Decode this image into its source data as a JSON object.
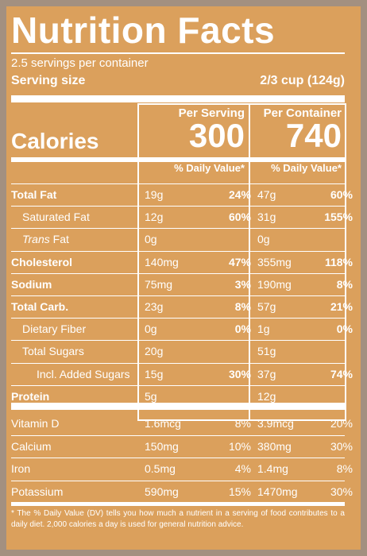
{
  "label": {
    "title": "Nutrition Facts",
    "servings_per_container": "2.5 servings per container",
    "serving_size_label": "Serving size",
    "serving_size_value": "2/3 cup (124g)",
    "per_serving_header": "Per Serving",
    "per_container_header": "Per Container",
    "calories_label": "Calories",
    "calories_per_serving": "300",
    "calories_per_container": "740",
    "dv_header": "% Daily Value*",
    "footnote": "* The % Daily Value (DV) tells you how much a nutrient in a serving of food contributes to a daily diet. 2,000 calories a day is used for general nutrition advice."
  },
  "nutrients": [
    {
      "name": "Total Fat",
      "bold": true,
      "indent": 0,
      "italic_prefix": "",
      "serv_amt": "19g",
      "serv_pct": "24%",
      "cont_amt": "47g",
      "cont_pct": "60%"
    },
    {
      "name": "Saturated Fat",
      "bold": false,
      "indent": 1,
      "italic_prefix": "",
      "serv_amt": "12g",
      "serv_pct": "60%",
      "cont_amt": "31g",
      "cont_pct": "155%"
    },
    {
      "name": "Fat",
      "bold": false,
      "indent": 1,
      "italic_prefix": "Trans",
      "serv_amt": "0g",
      "serv_pct": "",
      "cont_amt": "0g",
      "cont_pct": ""
    },
    {
      "name": "Cholesterol",
      "bold": true,
      "indent": 0,
      "italic_prefix": "",
      "serv_amt": "140mg",
      "serv_pct": "47%",
      "cont_amt": "355mg",
      "cont_pct": "118%"
    },
    {
      "name": "Sodium",
      "bold": true,
      "indent": 0,
      "italic_prefix": "",
      "serv_amt": "75mg",
      "serv_pct": "3%",
      "cont_amt": "190mg",
      "cont_pct": "8%"
    },
    {
      "name": "Total Carb.",
      "bold": true,
      "indent": 0,
      "italic_prefix": "",
      "serv_amt": "23g",
      "serv_pct": "8%",
      "cont_amt": "57g",
      "cont_pct": "21%"
    },
    {
      "name": "Dietary Fiber",
      "bold": false,
      "indent": 1,
      "italic_prefix": "",
      "serv_amt": "0g",
      "serv_pct": "0%",
      "cont_amt": "1g",
      "cont_pct": "0%"
    },
    {
      "name": "Total Sugars",
      "bold": false,
      "indent": 1,
      "italic_prefix": "",
      "serv_amt": "20g",
      "serv_pct": "",
      "cont_amt": "51g",
      "cont_pct": ""
    },
    {
      "name": "Incl. Added Sugars",
      "bold": false,
      "indent": 2,
      "italic_prefix": "",
      "serv_amt": "15g",
      "serv_pct": "30%",
      "cont_amt": "37g",
      "cont_pct": "74%"
    },
    {
      "name": "Protein",
      "bold": true,
      "indent": 0,
      "italic_prefix": "",
      "serv_amt": "5g",
      "serv_pct": "",
      "cont_amt": "12g",
      "cont_pct": ""
    }
  ],
  "vitamins": [
    {
      "name": "Vitamin D",
      "serv_amt": "1.6mcg",
      "serv_pct": "8%",
      "cont_amt": "3.9mcg",
      "cont_pct": "20%"
    },
    {
      "name": "Calcium",
      "serv_amt": "150mg",
      "serv_pct": "10%",
      "cont_amt": "380mg",
      "cont_pct": "30%"
    },
    {
      "name": "Iron",
      "serv_amt": "0.5mg",
      "serv_pct": "4%",
      "cont_amt": "1.4mg",
      "cont_pct": "8%"
    },
    {
      "name": "Potassium",
      "serv_amt": "590mg",
      "serv_pct": "15%",
      "cont_amt": "1470mg",
      "cont_pct": "30%"
    }
  ],
  "colors": {
    "label_bg": "#dba05c",
    "text": "#ffffff",
    "backdrop": "#a39080"
  }
}
